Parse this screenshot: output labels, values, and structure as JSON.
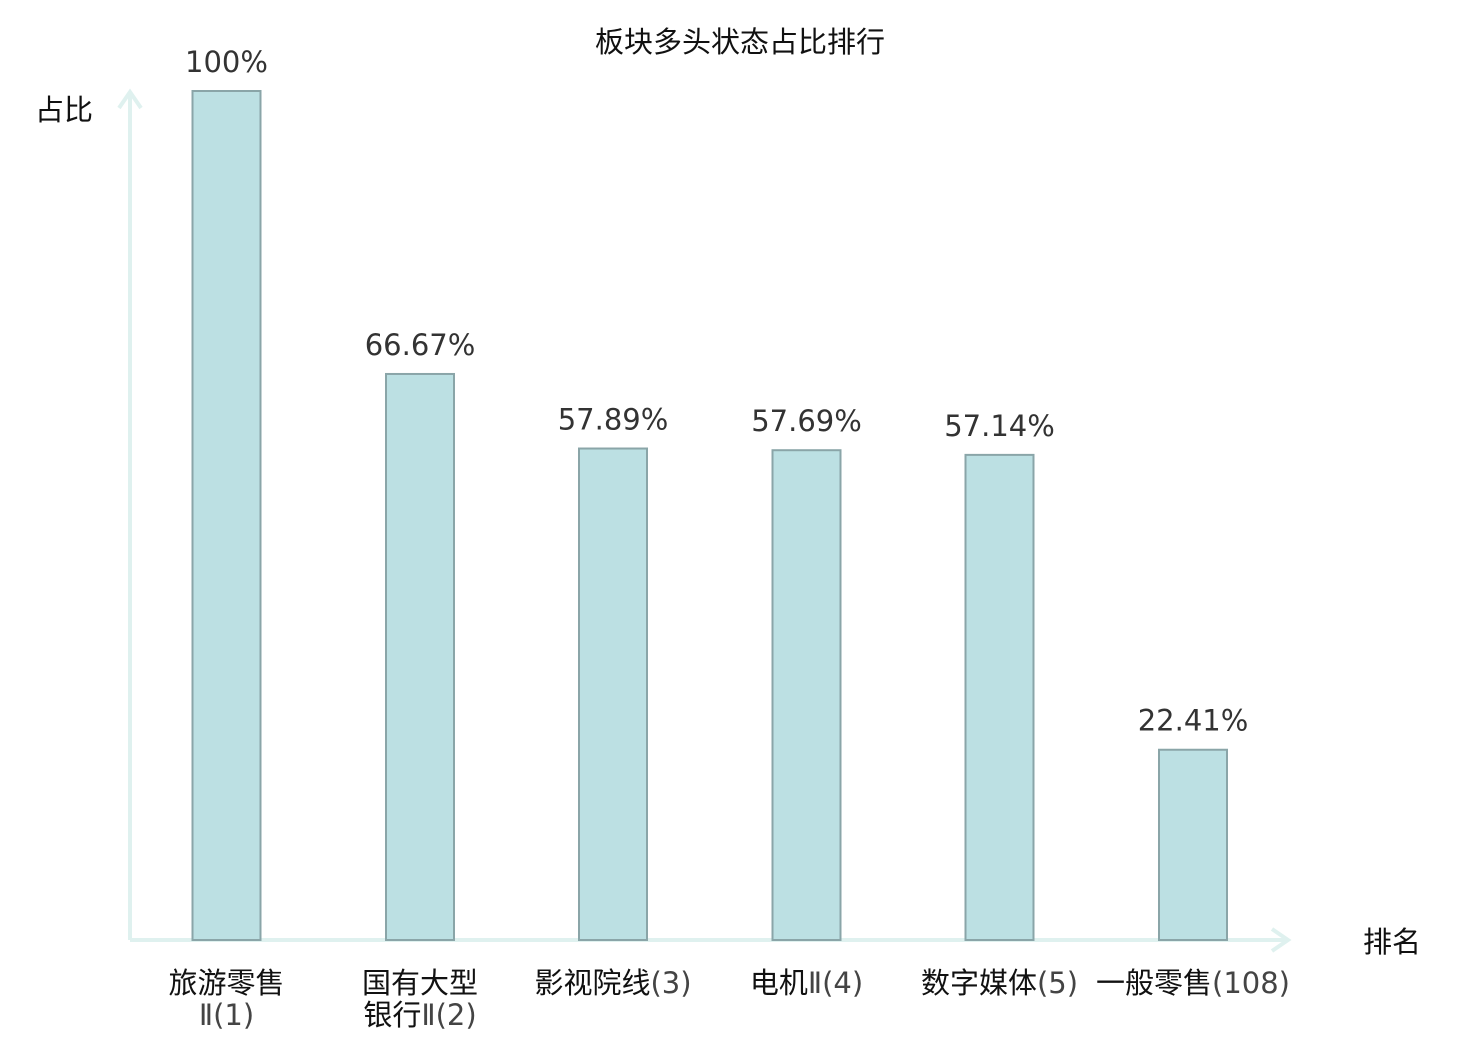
{
  "chart_data": {
    "type": "bar",
    "title": "板块多头状态占比排行",
    "ylabel": "占比",
    "xlabel": "排名",
    "ylim": [
      0,
      100
    ],
    "grid": false,
    "values": [
      100,
      66.67,
      57.89,
      57.69,
      57.14,
      22.41
    ],
    "value_labels": [
      "100%",
      "66.67%",
      "57.89%",
      "57.69%",
      "57.14%",
      "22.41%"
    ],
    "categories": [
      {
        "lines": [
          {
            "name": "旅游零售",
            "rank": ""
          },
          {
            "name": "",
            "rank": "Ⅱ(1)"
          }
        ],
        "highlight": false
      },
      {
        "lines": [
          {
            "name": "国有大型",
            "rank": ""
          },
          {
            "name": "银行",
            "rank": "Ⅱ(2)"
          }
        ],
        "highlight": false
      },
      {
        "lines": [
          {
            "name": "影视院线",
            "rank": "(3)"
          }
        ],
        "highlight": false
      },
      {
        "lines": [
          {
            "name": "电机",
            "rank": "Ⅱ(4)"
          }
        ],
        "highlight": false
      },
      {
        "lines": [
          {
            "name": "数字媒体",
            "rank": "(5)"
          }
        ],
        "highlight": false
      },
      {
        "lines": [
          {
            "name": "一般零售",
            "rank": "(108)"
          }
        ],
        "highlight": true
      }
    ],
    "colors": {
      "bar_fill": "#bce0e3",
      "bar_stroke": "#8aa5a8",
      "axis": "#dff1ef",
      "highlight_text": "#e0201c"
    }
  }
}
